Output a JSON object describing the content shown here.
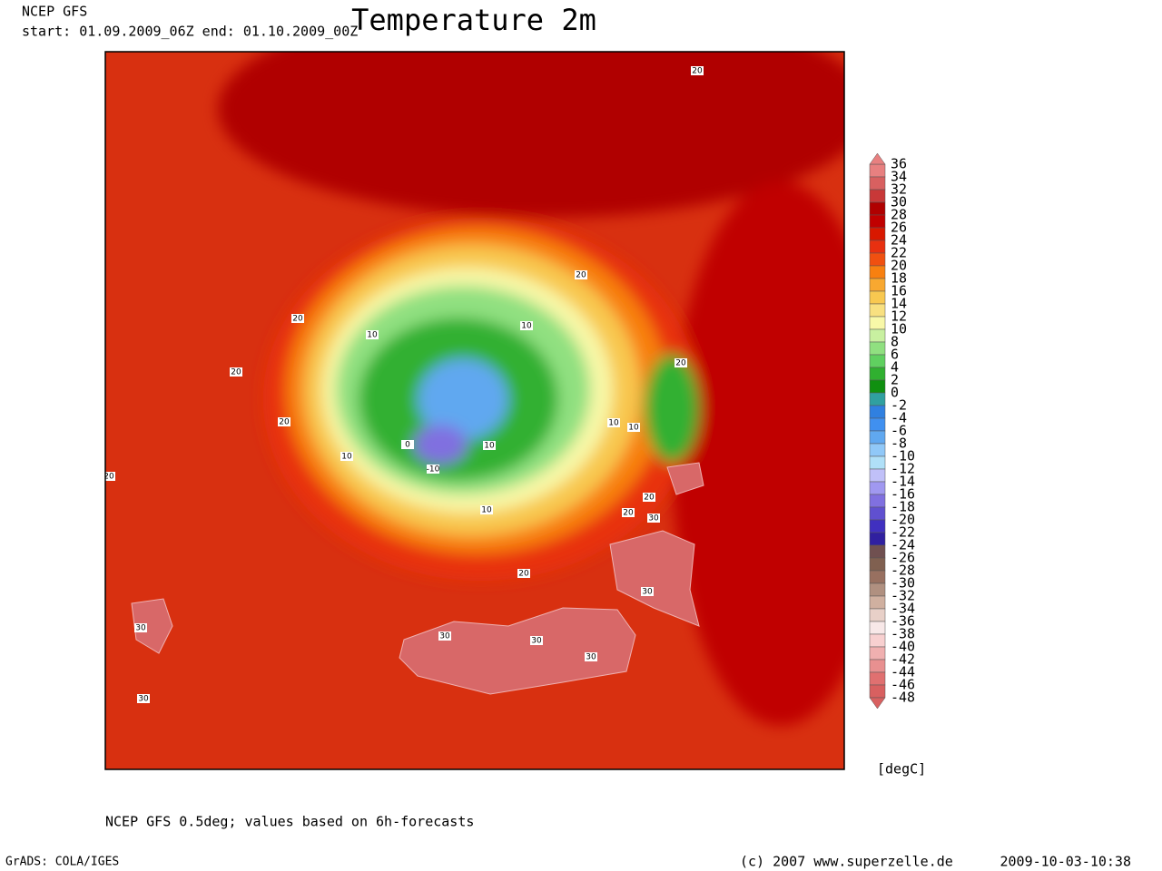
{
  "header": {
    "source": "NCEP GFS",
    "period": "start: 01.09.2009_06Z    end: 01.10.2009_00Z"
  },
  "title": "Temperature 2m",
  "colorbar": {
    "labels": [
      36,
      34,
      32,
      30,
      28,
      26,
      24,
      22,
      20,
      18,
      16,
      14,
      12,
      10,
      8,
      6,
      4,
      2,
      0,
      -2,
      -4,
      -6,
      -8,
      -10,
      -12,
      -14,
      -16,
      -18,
      -20,
      -22,
      -24,
      -26,
      -28,
      -30,
      -32,
      -34,
      -36,
      -38,
      -40,
      -42,
      -44,
      -46,
      -48
    ],
    "colors": [
      "#e88080",
      "#d86060",
      "#c83838",
      "#b00000",
      "#c00000",
      "#d81800",
      "#e83010",
      "#f05010",
      "#f88010",
      "#f8a830",
      "#f8c850",
      "#f8e080",
      "#f8f8a8",
      "#c8f0a0",
      "#90e080",
      "#60d060",
      "#30b030",
      "#109010",
      "#30a0a0",
      "#3080e0",
      "#4090f0",
      "#60a8f0",
      "#90c8f8",
      "#b0e0f8",
      "#c0c0f8",
      "#a098f0",
      "#8070e0",
      "#6050d0",
      "#4030c0",
      "#3020a0",
      "#705050",
      "#806050",
      "#987060",
      "#b09080",
      "#d0b0a0",
      "#e8d0c8",
      "#f8e8e8",
      "#f8d0d0",
      "#f0b0b0",
      "#e89090",
      "#e07070",
      "#d86060"
    ],
    "unit": "[degC]"
  },
  "map": {
    "contour_labels": [
      "20",
      "20",
      "20",
      "10",
      "10",
      "20",
      "20",
      "10",
      "10",
      "20",
      "0",
      "10",
      "-10",
      "10",
      "20",
      "20",
      "20",
      "30",
      "10",
      "20",
      "30",
      "30",
      "30",
      "30",
      "30",
      "30"
    ]
  },
  "footer": {
    "note": "NCEP GFS 0.5deg; values based on 6h-forecasts",
    "software": "GrADS: COLA/IGES",
    "copyright": "(c) 2007 www.superzelle.de",
    "timestamp": "2009-10-03-10:38"
  }
}
